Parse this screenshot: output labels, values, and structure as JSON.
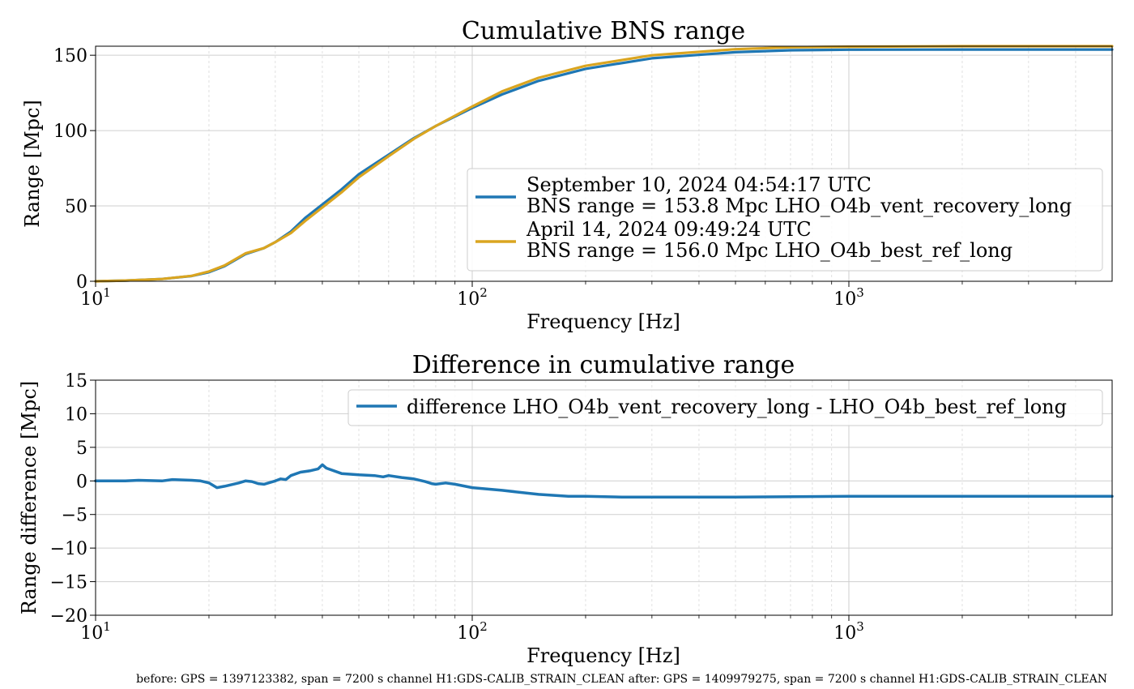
{
  "colors": {
    "series_after": "#1f77b4",
    "series_before": "#daa520",
    "grid": "#d9d9d9"
  },
  "chart_data": [
    {
      "type": "line",
      "title": "Cumulative BNS range",
      "xlabel": "Frequency [Hz]",
      "ylabel": "Range [Mpc]",
      "xscale": "log",
      "xlim": [
        10,
        5000
      ],
      "ylim": [
        0,
        156
      ],
      "xticks": [
        10,
        100,
        1000
      ],
      "xtick_labels": [
        {
          "base": "10",
          "exp": "1"
        },
        {
          "base": "10",
          "exp": "2"
        },
        {
          "base": "10",
          "exp": "3"
        }
      ],
      "yticks": [
        0,
        50,
        100,
        150
      ],
      "ytick_labels": [
        "0",
        "50",
        "100",
        "150"
      ],
      "grid": true,
      "legend_position": "lower-right",
      "legend": [
        {
          "lines": [
            "September 10, 2024 04:54:17 UTC",
            "BNS range = 153.8 Mpc LHO_O4b_vent_recovery_long"
          ]
        },
        {
          "lines": [
            "April 14, 2024 09:49:24 UTC",
            "BNS range = 156.0 Mpc LHO_O4b_best_ref_long"
          ]
        }
      ],
      "x": [
        10,
        12,
        15,
        18,
        20,
        22,
        25,
        28,
        30,
        33,
        36,
        40,
        45,
        50,
        60,
        70,
        80,
        100,
        120,
        150,
        200,
        300,
        500,
        700,
        1000,
        2000,
        5000
      ],
      "series": [
        {
          "values": [
            0,
            0.5,
            1.5,
            3.5,
            6,
            10,
            18,
            22,
            26,
            33,
            42,
            51,
            61,
            71,
            84,
            95,
            103,
            115,
            124,
            133,
            141,
            148,
            152,
            153.3,
            153.7,
            153.8,
            153.8
          ]
        },
        {
          "values": [
            0,
            0.5,
            1.5,
            3.6,
            6.5,
            10.5,
            18.5,
            22,
            26,
            32,
            40,
            49,
            59,
            69,
            83,
            94.5,
            103,
            116,
            126,
            135,
            143,
            150,
            154,
            155.3,
            155.7,
            156,
            156
          ]
        }
      ]
    },
    {
      "type": "line",
      "title": "Difference in cumulative range",
      "xlabel": "Frequency [Hz]",
      "ylabel": "Range difference [Mpc]",
      "xscale": "log",
      "xlim": [
        10,
        5000
      ],
      "ylim": [
        -20,
        15
      ],
      "xticks": [
        10,
        100,
        1000
      ],
      "xtick_labels": [
        {
          "base": "10",
          "exp": "1"
        },
        {
          "base": "10",
          "exp": "2"
        },
        {
          "base": "10",
          "exp": "3"
        }
      ],
      "yticks": [
        15,
        10,
        5,
        0,
        -5,
        -10,
        -15,
        -20
      ],
      "ytick_labels": [
        "15",
        "10",
        "5",
        "0",
        "−5",
        "−10",
        "−15",
        "−20"
      ],
      "grid": true,
      "legend_position": "upper-right",
      "legend": [
        {
          "lines": [
            "difference LHO_O4b_vent_recovery_long - LHO_O4b_best_ref_long"
          ]
        }
      ],
      "x": [
        10,
        12,
        13,
        15,
        16,
        18,
        19,
        20,
        21,
        22,
        24,
        25,
        26,
        27,
        28,
        30,
        31,
        32,
        33,
        35,
        37,
        39,
        40,
        41,
        45,
        50,
        55,
        58,
        60,
        65,
        70,
        75,
        78,
        80,
        85,
        90,
        100,
        120,
        150,
        170,
        180,
        200,
        250,
        300,
        500,
        1000,
        2000,
        5000
      ],
      "series": [
        {
          "values": [
            0,
            0,
            0.1,
            0,
            0.2,
            0.1,
            0,
            -0.3,
            -1.0,
            -0.8,
            -0.3,
            0,
            -0.1,
            -0.4,
            -0.5,
            0,
            0.3,
            0.2,
            0.8,
            1.3,
            1.5,
            1.8,
            2.4,
            1.9,
            1.1,
            0.9,
            0.8,
            0.6,
            0.8,
            0.5,
            0.3,
            -0.1,
            -0.4,
            -0.5,
            -0.3,
            -0.5,
            -1.0,
            -1.4,
            -2.0,
            -2.2,
            -2.3,
            -2.3,
            -2.4,
            -2.4,
            -2.4,
            -2.3,
            -2.3,
            -2.3
          ]
        }
      ]
    }
  ],
  "footer": "before: GPS = 1397123382, span = 7200 s channel H1:GDS-CALIB_STRAIN_CLEAN after: GPS = 1409979275, span = 7200 s channel H1:GDS-CALIB_STRAIN_CLEAN"
}
